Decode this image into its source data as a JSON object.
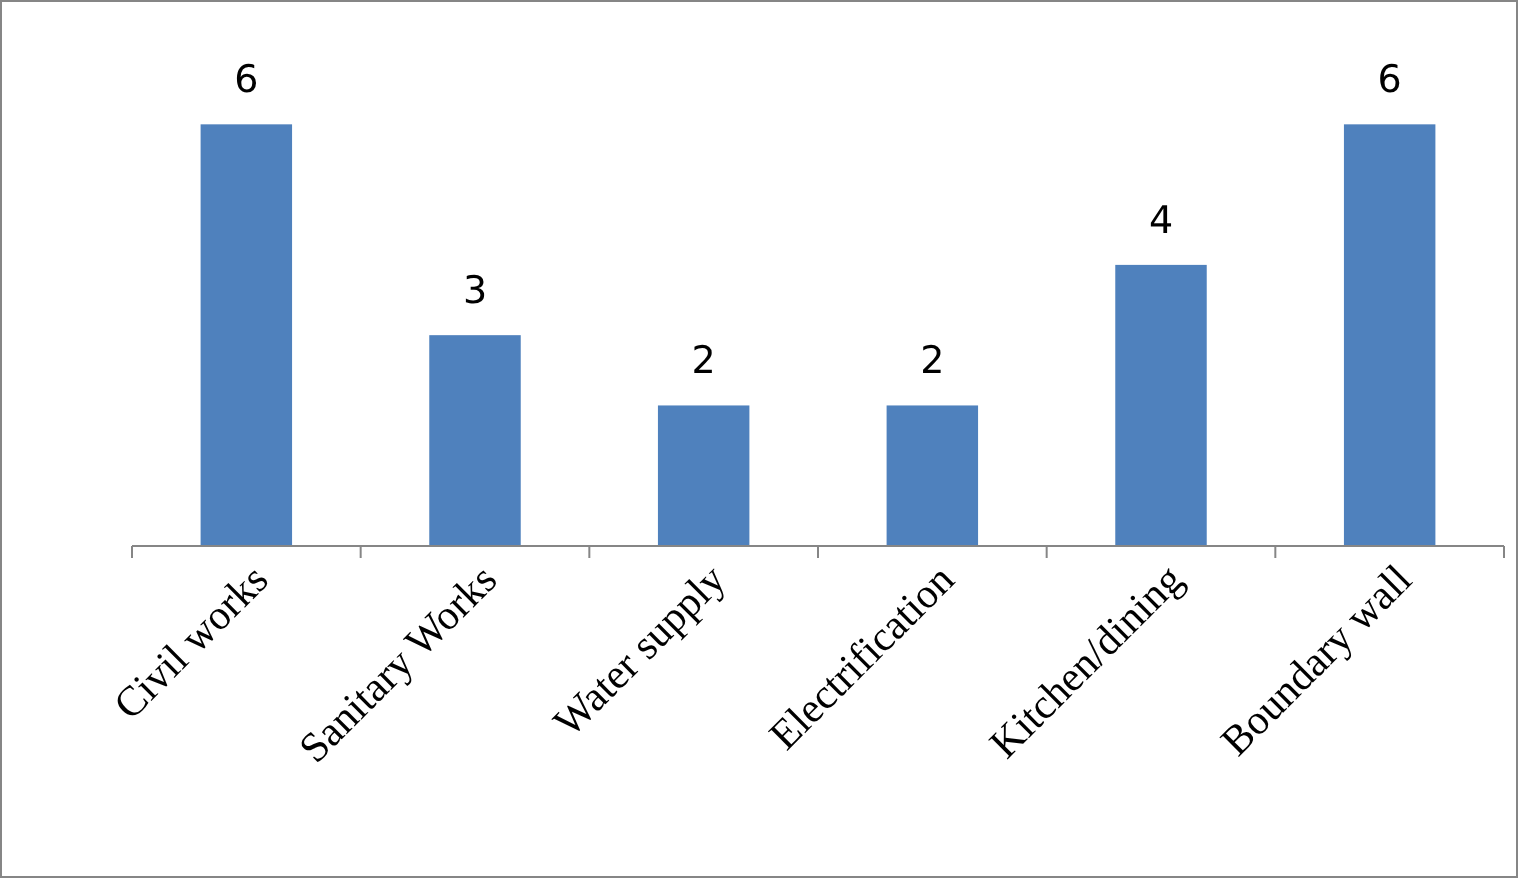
{
  "chart_data": {
    "type": "bar",
    "categories": [
      "Civil works",
      "Sanitary Works",
      "Water supply",
      "Electrification",
      "Kitchen/dining",
      "Boundary wall"
    ],
    "values": [
      6,
      3,
      2,
      2,
      4,
      6
    ],
    "color": "#4f81bd",
    "data_labels": true
  }
}
